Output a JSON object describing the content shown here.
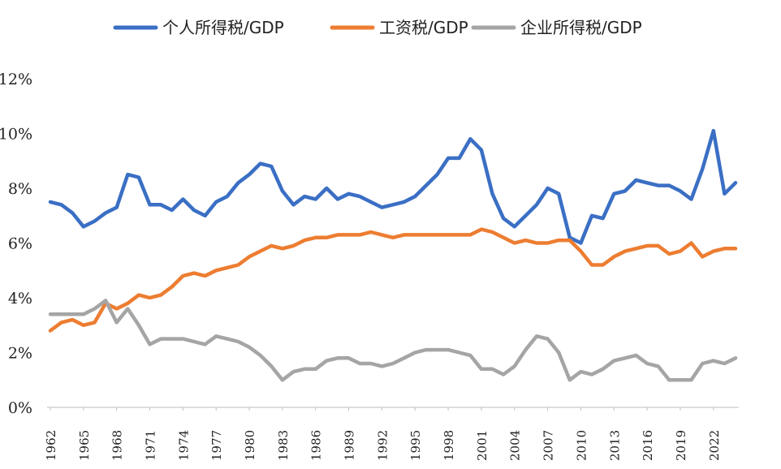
{
  "chart_data": {
    "type": "line",
    "title": "",
    "xlabel": "",
    "ylabel": "",
    "ylim": [
      0,
      12
    ],
    "y_ticks": [
      "0%",
      "2%",
      "4%",
      "6%",
      "8%",
      "10%",
      "12%"
    ],
    "x_tick_labels": [
      "1962",
      "1965",
      "1968",
      "1971",
      "1974",
      "1977",
      "1980",
      "1983",
      "1986",
      "1989",
      "1992",
      "1995",
      "1998",
      "2001",
      "2004",
      "2007",
      "2010",
      "2013",
      "2016",
      "2019",
      "2022"
    ],
    "grid": false,
    "legend_position": "top",
    "x": [
      1962,
      1963,
      1964,
      1965,
      1966,
      1967,
      1968,
      1969,
      1970,
      1971,
      1972,
      1973,
      1974,
      1975,
      1976,
      1977,
      1978,
      1979,
      1980,
      1981,
      1982,
      1983,
      1984,
      1985,
      1986,
      1987,
      1988,
      1989,
      1990,
      1991,
      1992,
      1993,
      1994,
      1995,
      1996,
      1997,
      1998,
      1999,
      2000,
      2001,
      2002,
      2003,
      2004,
      2005,
      2006,
      2007,
      2008,
      2009,
      2010,
      2011,
      2012,
      2013,
      2014,
      2015,
      2016,
      2017,
      2018,
      2019,
      2020,
      2021,
      2022,
      2023,
      2024
    ],
    "series": [
      {
        "name": "个人所得税/GDP",
        "color": "#3a6fc4",
        "values": [
          7.5,
          7.4,
          7.1,
          6.6,
          6.8,
          7.1,
          7.3,
          8.5,
          8.4,
          7.4,
          7.4,
          7.2,
          7.6,
          7.2,
          7.0,
          7.5,
          7.7,
          8.2,
          8.5,
          8.9,
          8.8,
          7.9,
          7.4,
          7.7,
          7.6,
          8.0,
          7.6,
          7.8,
          7.7,
          7.5,
          7.3,
          7.4,
          7.5,
          7.7,
          8.1,
          8.5,
          9.1,
          9.1,
          9.8,
          9.4,
          7.8,
          6.9,
          6.6,
          7.0,
          7.4,
          8.0,
          7.8,
          6.2,
          6.0,
          7.0,
          6.9,
          7.8,
          7.9,
          8.3,
          8.2,
          8.1,
          8.1,
          7.9,
          7.6,
          8.7,
          10.1,
          7.8,
          8.2
        ]
      },
      {
        "name": "工资税/GDP",
        "color": "#ed7d31",
        "values": [
          2.8,
          3.1,
          3.2,
          3.0,
          3.1,
          3.8,
          3.6,
          3.8,
          4.1,
          4.0,
          4.1,
          4.4,
          4.8,
          4.9,
          4.8,
          5.0,
          5.1,
          5.2,
          5.5,
          5.7,
          5.9,
          5.8,
          5.9,
          6.1,
          6.2,
          6.2,
          6.3,
          6.3,
          6.3,
          6.4,
          6.3,
          6.2,
          6.3,
          6.3,
          6.3,
          6.3,
          6.3,
          6.3,
          6.3,
          6.5,
          6.4,
          6.2,
          6.0,
          6.1,
          6.0,
          6.0,
          6.1,
          6.1,
          5.7,
          5.2,
          5.2,
          5.5,
          5.7,
          5.8,
          5.9,
          5.9,
          5.6,
          5.7,
          6.0,
          5.5,
          5.7,
          5.8,
          5.8
        ]
      },
      {
        "name": "企业所得税/GDP",
        "color": "#a5a5a5",
        "values": [
          3.4,
          3.4,
          3.4,
          3.4,
          3.6,
          3.9,
          3.1,
          3.6,
          3.0,
          2.3,
          2.5,
          2.5,
          2.5,
          2.4,
          2.3,
          2.6,
          2.5,
          2.4,
          2.2,
          1.9,
          1.5,
          1.0,
          1.3,
          1.4,
          1.4,
          1.7,
          1.8,
          1.8,
          1.6,
          1.6,
          1.5,
          1.6,
          1.8,
          2.0,
          2.1,
          2.1,
          2.1,
          2.0,
          1.9,
          1.4,
          1.4,
          1.2,
          1.5,
          2.1,
          2.6,
          2.5,
          2.0,
          1.0,
          1.3,
          1.2,
          1.4,
          1.7,
          1.8,
          1.9,
          1.6,
          1.5,
          1.0,
          1.0,
          1.0,
          1.6,
          1.7,
          1.6,
          1.8
        ]
      }
    ]
  }
}
